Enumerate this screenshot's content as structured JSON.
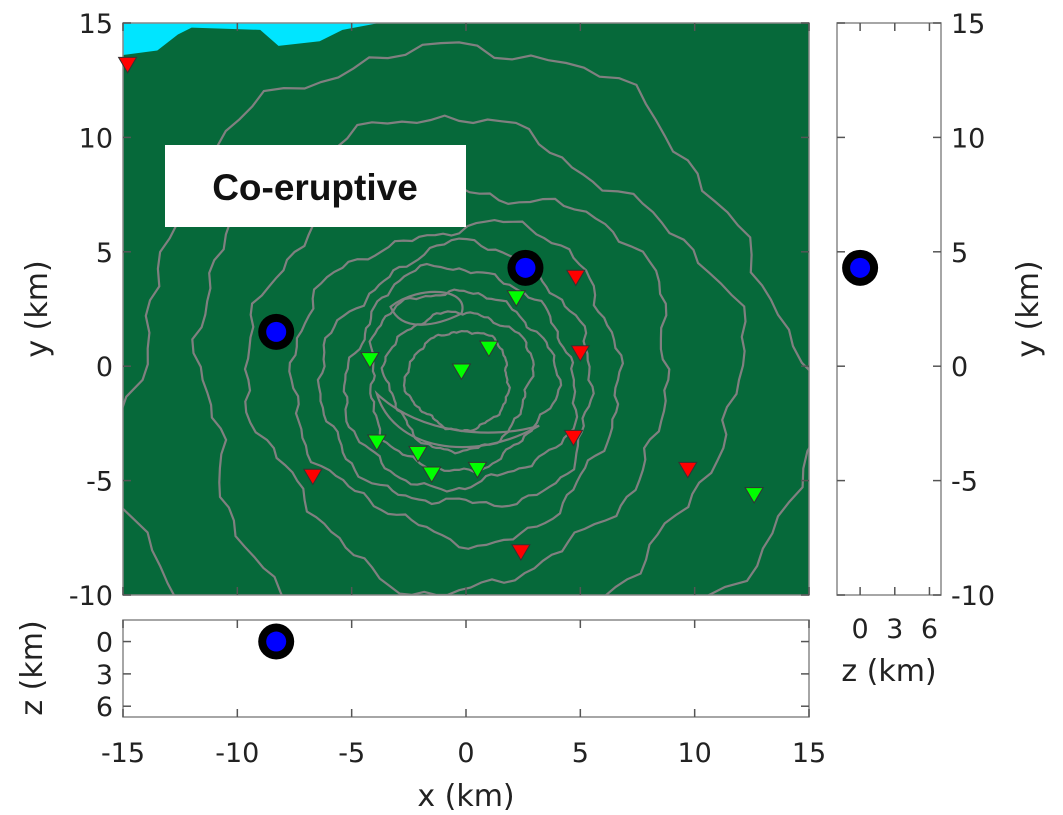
{
  "chart_data": {
    "type": "scatter",
    "title": "Co-eruptive",
    "map": {
      "xlabel": "x (km)",
      "ylabel": "y (km)",
      "xlim": [
        -15,
        15
      ],
      "ylim": [
        -10,
        15
      ],
      "xticks": [
        -15,
        -10,
        -5,
        0,
        5,
        10,
        15
      ],
      "xtick_labels": [
        "-15",
        "-10",
        "-5",
        "0",
        "5",
        "10",
        "15"
      ],
      "yticks": [
        -10,
        -5,
        0,
        5,
        10,
        15
      ],
      "ytick_labels": [
        "-10",
        "-5",
        "0",
        "5",
        "10",
        "15"
      ],
      "background": "filled contour map",
      "contour_colors": [
        "#06693a",
        "#157b3c",
        "#2d8d43",
        "#47a04c",
        "#63b05a",
        "#80c06c",
        "#9dcf82",
        "#b8dc98",
        "#cde5a8",
        "#d8ecb4"
      ],
      "contour_line_color": "#808080",
      "water_color": "#00e5ff",
      "contour_center": [
        -0.3,
        -0.6
      ],
      "contour_radii": [
        14.5,
        11.5,
        9.0,
        7.0,
        5.8,
        4.9,
        4.0,
        3.1,
        2.2
      ]
    },
    "depth_panel_x": {
      "ylabel": "z (km)",
      "yticks": [
        0,
        3,
        6
      ],
      "ytick_labels": [
        "0",
        "3",
        "6"
      ],
      "ylim": [
        -2,
        7
      ]
    },
    "depth_panel_y": {
      "xlabel": "z (km)",
      "ylabel": "y (km)",
      "xticks": [
        0,
        3,
        6
      ],
      "xtick_labels": [
        "0",
        "3",
        "6"
      ],
      "xlim": [
        -2,
        7
      ],
      "yticks": [
        -10,
        -5,
        0,
        5,
        10,
        15
      ],
      "ytick_labels": [
        "-10",
        "-5",
        "0",
        "5",
        "10",
        "15"
      ]
    },
    "sources": [
      {
        "x": -8.3,
        "y": 1.5,
        "z": 0
      },
      {
        "x": 2.6,
        "y": 4.3,
        "z": 0
      }
    ],
    "stations_red": [
      {
        "x": -14.8,
        "y": 13.2
      },
      {
        "x": 4.8,
        "y": 3.9
      },
      {
        "x": 5.0,
        "y": 0.6
      },
      {
        "x": 4.7,
        "y": -3.1
      },
      {
        "x": -6.7,
        "y": -4.8
      },
      {
        "x": 9.7,
        "y": -4.5
      },
      {
        "x": 2.4,
        "y": -8.1
      }
    ],
    "stations_green": [
      {
        "x": 2.2,
        "y": 3.0
      },
      {
        "x": -4.2,
        "y": 0.3
      },
      {
        "x": 1.0,
        "y": 0.8
      },
      {
        "x": -0.2,
        "y": -0.2
      },
      {
        "x": -3.9,
        "y": -3.3
      },
      {
        "x": -2.1,
        "y": -3.8
      },
      {
        "x": -1.5,
        "y": -4.7
      },
      {
        "x": 0.5,
        "y": -4.5
      },
      {
        "x": 12.6,
        "y": -5.6
      }
    ],
    "colors": {
      "source_fill": "#0000ff",
      "source_edge": "#000000",
      "station_red": "#ff0000",
      "station_green": "#00ff00"
    }
  }
}
